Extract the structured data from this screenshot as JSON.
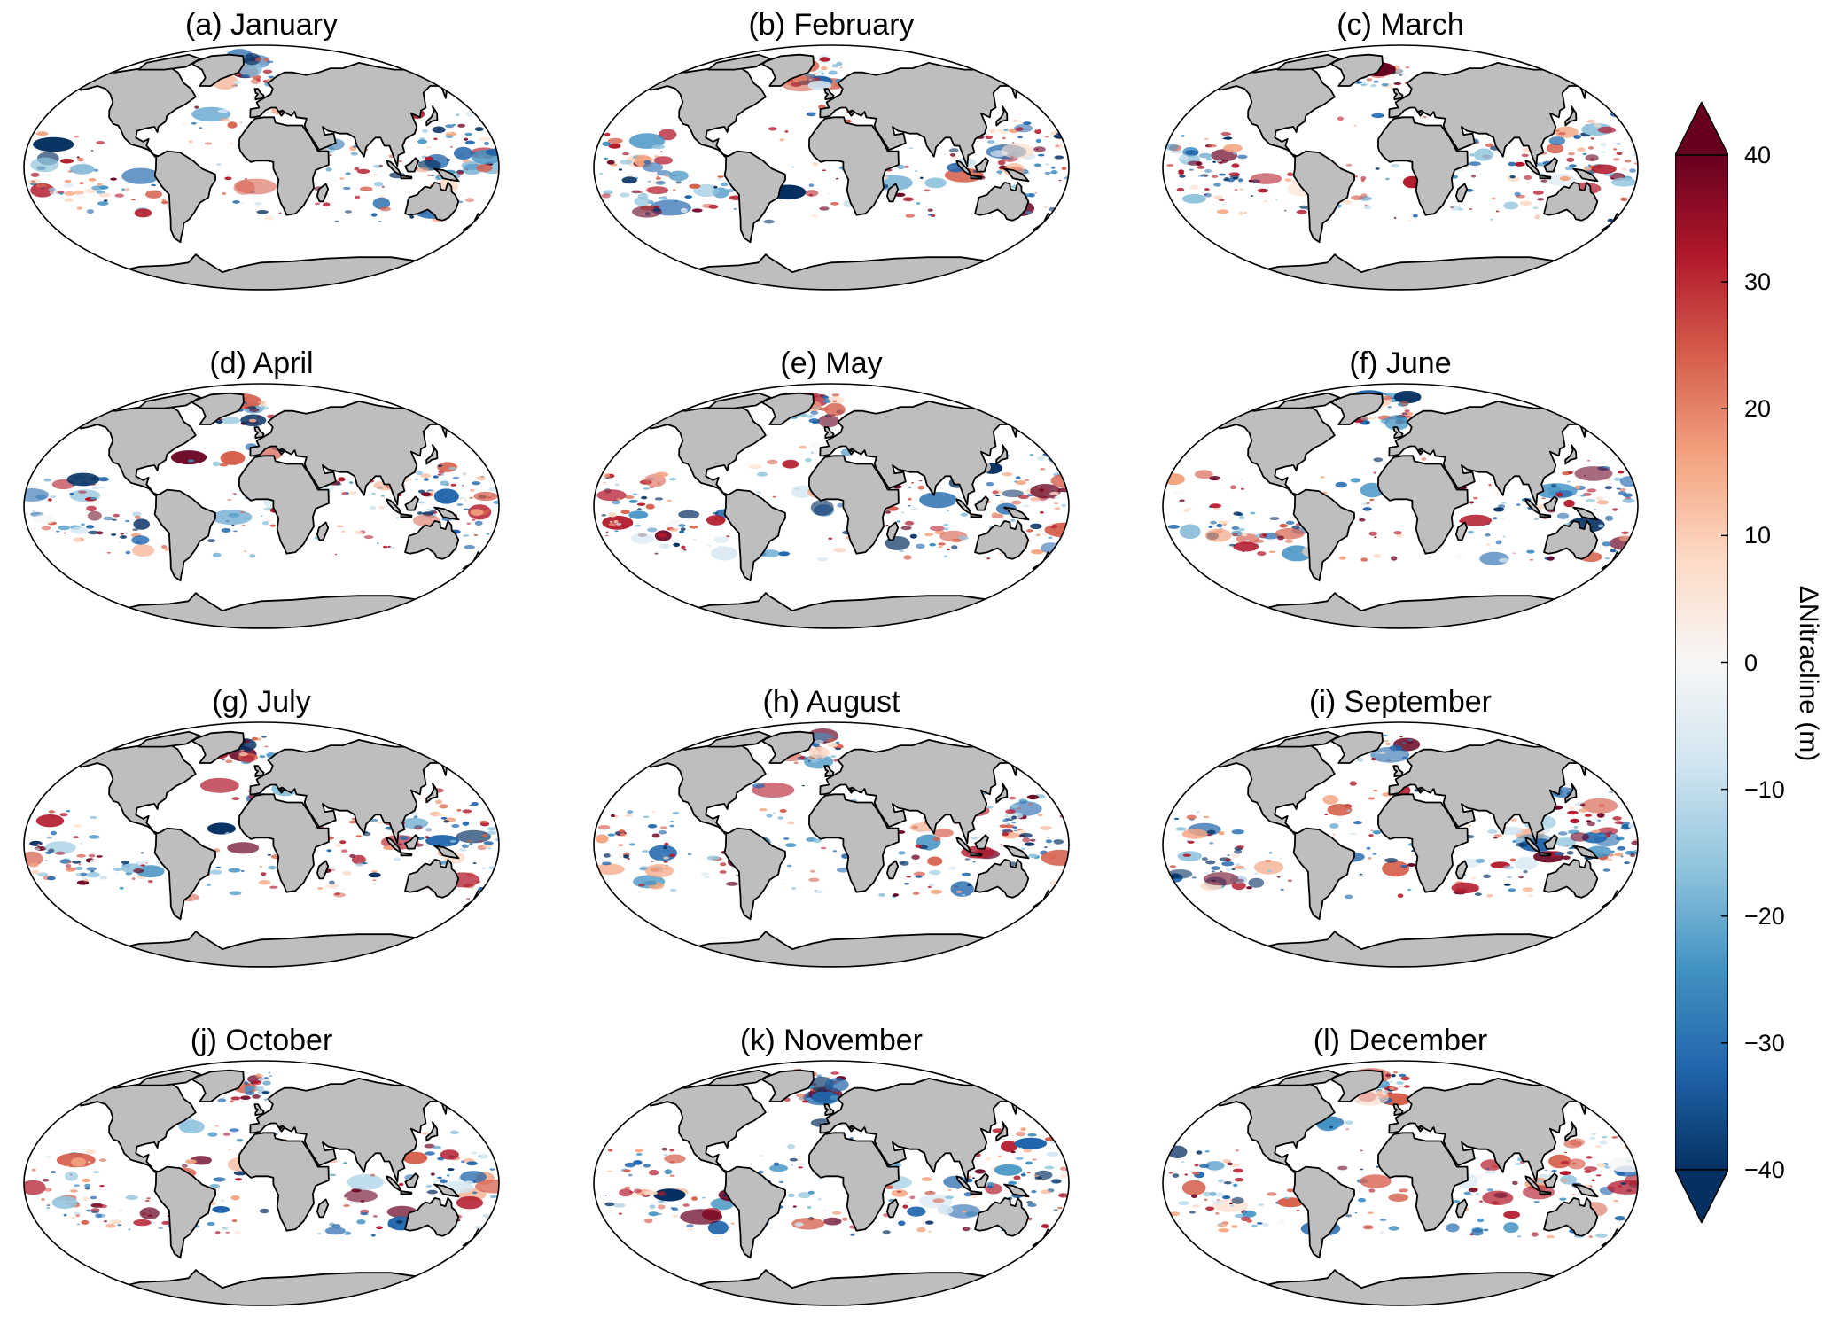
{
  "panels": [
    {
      "label": "(a) January",
      "seed": 11
    },
    {
      "label": "(b) February",
      "seed": 23
    },
    {
      "label": "(c) March",
      "seed": 37
    },
    {
      "label": "(d) April",
      "seed": 41
    },
    {
      "label": "(e) May",
      "seed": 53
    },
    {
      "label": "(f) June",
      "seed": 67
    },
    {
      "label": "(g) July",
      "seed": 71
    },
    {
      "label": "(h) August",
      "seed": 83
    },
    {
      "label": "(i) September",
      "seed": 97
    },
    {
      "label": "(j) October",
      "seed": 101
    },
    {
      "label": "(k) November",
      "seed": 113
    },
    {
      "label": "(l) December",
      "seed": 127
    }
  ],
  "colorbar": {
    "label": "ΔNitracline (m)",
    "min": -40,
    "max": 40,
    "extend": "both",
    "ticks": [
      "40",
      "30",
      "20",
      "10",
      "0",
      "−10",
      "−20",
      "−30",
      "−40"
    ],
    "colormap": "RdBu_r",
    "colors": [
      "#053061",
      "#2166ac",
      "#4393c3",
      "#92c5de",
      "#d1e5f0",
      "#f7f7f7",
      "#fddbc7",
      "#f4a582",
      "#d6604d",
      "#b2182b",
      "#67001f"
    ]
  },
  "style": {
    "land_color": "#bebebe",
    "coast_color": "#000000",
    "ocean_color": "#ffffff"
  }
}
